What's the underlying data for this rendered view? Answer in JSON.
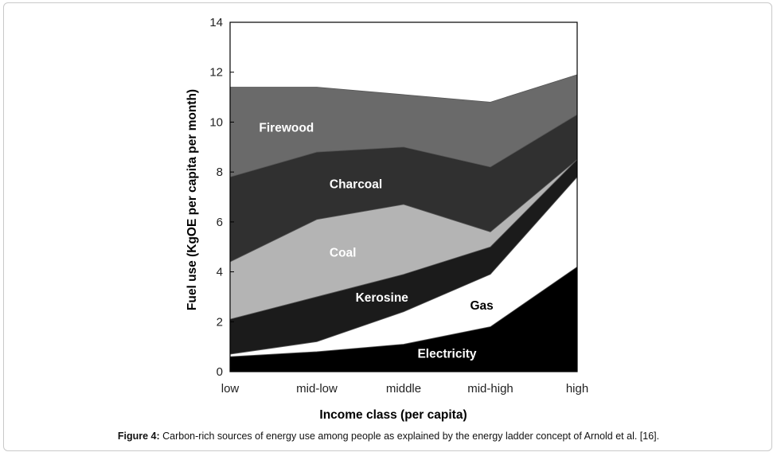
{
  "chart_data": {
    "type": "area",
    "stacked": true,
    "categories": [
      "low",
      "mid-low",
      "middle",
      "mid-high",
      "high"
    ],
    "series": [
      {
        "name": "Electricity",
        "values": [
          0.6,
          0.8,
          1.1,
          1.8,
          4.2
        ],
        "color": "#000000"
      },
      {
        "name": "Gas",
        "values": [
          0.1,
          0.4,
          1.3,
          2.1,
          3.6
        ],
        "color": "#ffffff"
      },
      {
        "name": "Kerosine",
        "values": [
          1.4,
          1.8,
          1.5,
          1.1,
          0.7
        ],
        "color": "#1b1b1b"
      },
      {
        "name": "Coal",
        "values": [
          2.3,
          3.1,
          2.8,
          0.6,
          0.0
        ],
        "color": "#b4b4b4"
      },
      {
        "name": "Charcoal",
        "values": [
          3.4,
          2.7,
          2.3,
          2.6,
          1.8
        ],
        "color": "#303030"
      },
      {
        "name": "Firewood",
        "values": [
          3.6,
          2.6,
          2.1,
          2.6,
          1.6
        ],
        "color": "#6a6a6a"
      }
    ],
    "xlabel": "Income class (per capita)",
    "ylabel": "Fuel use (KgOE per capita per month)",
    "ylim": [
      0,
      14
    ],
    "yticks": [
      "0",
      "2",
      "4",
      "6",
      "8",
      "10",
      "12",
      "14"
    ],
    "grid": false,
    "legend": "inline labels"
  },
  "caption": {
    "label": "Figure 4:",
    "text": " Carbon-rich sources of energy use among people as explained by the energy ladder concept of Arnold et al. [16]."
  }
}
